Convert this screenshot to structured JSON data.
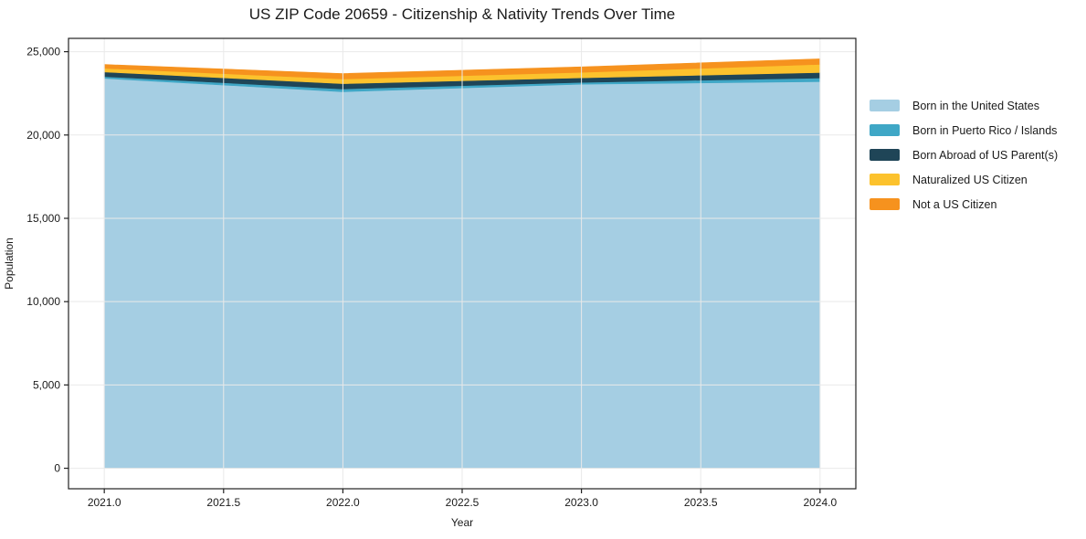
{
  "figure": {
    "title": "US ZIP Code 20659 - Citizenship & Nativity Trends Over Time",
    "background": "#ffffff"
  },
  "chart_data": {
    "type": "area",
    "stacked": true,
    "title": "US ZIP Code 20659 - Citizenship & Nativity Trends Over Time",
    "xlabel": "Year",
    "ylabel": "Population",
    "x": [
      2021,
      2022,
      2023,
      2024
    ],
    "series": [
      {
        "name": "Born in the United States",
        "color": "#a5cee3",
        "values": [
          23400,
          22600,
          23050,
          23200
        ]
      },
      {
        "name": "Born in Puerto Rico / Islands",
        "color": "#3fa7c6",
        "values": [
          110,
          160,
          110,
          220
        ]
      },
      {
        "name": "Born Abroad of US Parent(s)",
        "color": "#1f4557",
        "values": [
          270,
          320,
          270,
          330
        ]
      },
      {
        "name": "Naturalized US Citizen",
        "color": "#fcc22d",
        "values": [
          220,
          280,
          330,
          490
        ]
      },
      {
        "name": "Not a US Citizen",
        "color": "#f6921e",
        "values": [
          230,
          330,
          330,
          330
        ]
      }
    ],
    "totals": [
      24230,
      23690,
      24090,
      24570
    ],
    "xlim": [
      2020.85,
      2024.15
    ],
    "ylim": [
      -1230,
      25800
    ],
    "xticks": {
      "values": [
        2021.0,
        2021.5,
        2022.0,
        2022.5,
        2023.0,
        2023.5,
        2024.0
      ],
      "labels": [
        "2021.0",
        "2021.5",
        "2022.0",
        "2022.5",
        "2023.0",
        "2023.5",
        "2024.0"
      ]
    },
    "yticks": {
      "values": [
        0,
        5000,
        10000,
        15000,
        20000,
        25000
      ],
      "labels": [
        "0",
        "5,000",
        "10,000",
        "15,000",
        "20,000",
        "25,000"
      ]
    },
    "grid": true,
    "grid_color": "#e9e9e9",
    "spine_color": "#222222",
    "tick_color": "#222222",
    "text_color": "#1a1a1a",
    "legend_position": "right"
  }
}
